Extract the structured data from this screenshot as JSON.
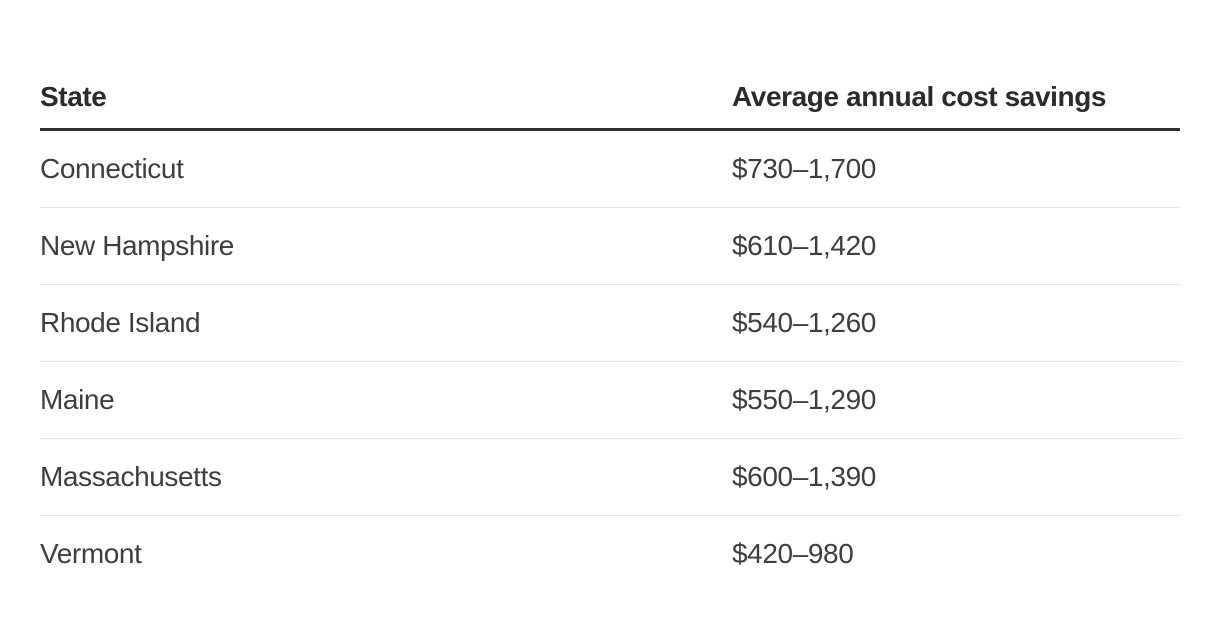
{
  "table": {
    "columns": {
      "state": "State",
      "savings": "Average annual cost savings"
    },
    "rows": [
      {
        "state": "Connecticut",
        "savings": "$730–1,700"
      },
      {
        "state": "New Hampshire",
        "savings": "$610–1,420"
      },
      {
        "state": "Rhode Island",
        "savings": "$540–1,260"
      },
      {
        "state": "Maine",
        "savings": "$550–1,290"
      },
      {
        "state": "Massachusetts",
        "savings": "$600–1,390"
      },
      {
        "state": "Vermont",
        "savings": "$420–980"
      }
    ]
  },
  "chart_data": {
    "type": "table",
    "columns": [
      "State",
      "Average annual cost savings"
    ],
    "rows": [
      [
        "Connecticut",
        "$730–1,700"
      ],
      [
        "New Hampshire",
        "$610–1,420"
      ],
      [
        "Rhode Island",
        "$540–1,260"
      ],
      [
        "Maine",
        "$550–1,290"
      ],
      [
        "Massachusetts",
        "$600–1,390"
      ],
      [
        "Vermont",
        "$420–980"
      ]
    ],
    "savings_ranges_usd": [
      {
        "state": "Connecticut",
        "min": 730,
        "max": 1700
      },
      {
        "state": "New Hampshire",
        "min": 610,
        "max": 1420
      },
      {
        "state": "Rhode Island",
        "min": 540,
        "max": 1260
      },
      {
        "state": "Maine",
        "min": 550,
        "max": 1290
      },
      {
        "state": "Massachusetts",
        "min": 600,
        "max": 1390
      },
      {
        "state": "Vermont",
        "min": 420,
        "max": 980
      }
    ],
    "title": "",
    "layout": "two-column table, left-aligned columns, thick rule under header, thin row separators, no bottom border"
  },
  "colors": {
    "background": "#ffffff",
    "header_text": "#2b2b2b",
    "body_text": "#3e3e3e",
    "header_rule": "#2e2e2e",
    "row_separator": "#e2e2e2"
  }
}
